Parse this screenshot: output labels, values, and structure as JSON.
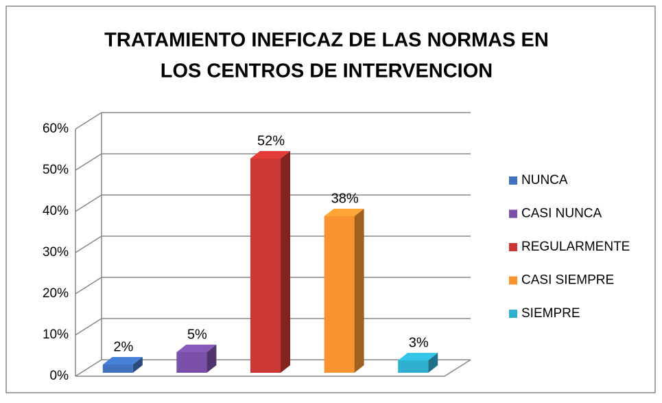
{
  "chart_data": {
    "type": "bar3d",
    "title": [
      "TRATAMIENTO INEFICAZ DE LAS NORMAS EN",
      "LOS CENTROS DE INTERVENCION"
    ],
    "series": [
      {
        "name": "NUNCA",
        "color": "#3f73c0",
        "values": [
          2
        ],
        "value_labels": [
          "2%"
        ]
      },
      {
        "name": "CASI NUNCA",
        "color": "#7a50a8",
        "values": [
          5
        ],
        "value_labels": [
          "5%"
        ]
      },
      {
        "name": "REGULARMENTE",
        "color": "#cc3633",
        "values": [
          52
        ],
        "value_labels": [
          "52%"
        ]
      },
      {
        "name": "CASI SIEMPRE",
        "color": "#f79430",
        "values": [
          38
        ],
        "value_labels": [
          "38%"
        ]
      },
      {
        "name": "SIEMPRE",
        "color": "#2fb0cf",
        "values": [
          3
        ],
        "value_labels": [
          "3%"
        ]
      }
    ],
    "ylim": [
      0,
      60
    ],
    "yticks": [
      {
        "value": 0,
        "label": "0%"
      },
      {
        "value": 10,
        "label": "10%"
      },
      {
        "value": 20,
        "label": "20%"
      },
      {
        "value": 30,
        "label": "30%"
      },
      {
        "value": 40,
        "label": "40%"
      },
      {
        "value": 50,
        "label": "50%"
      },
      {
        "value": 60,
        "label": "60%"
      }
    ],
    "grid": true,
    "legend": "right"
  }
}
